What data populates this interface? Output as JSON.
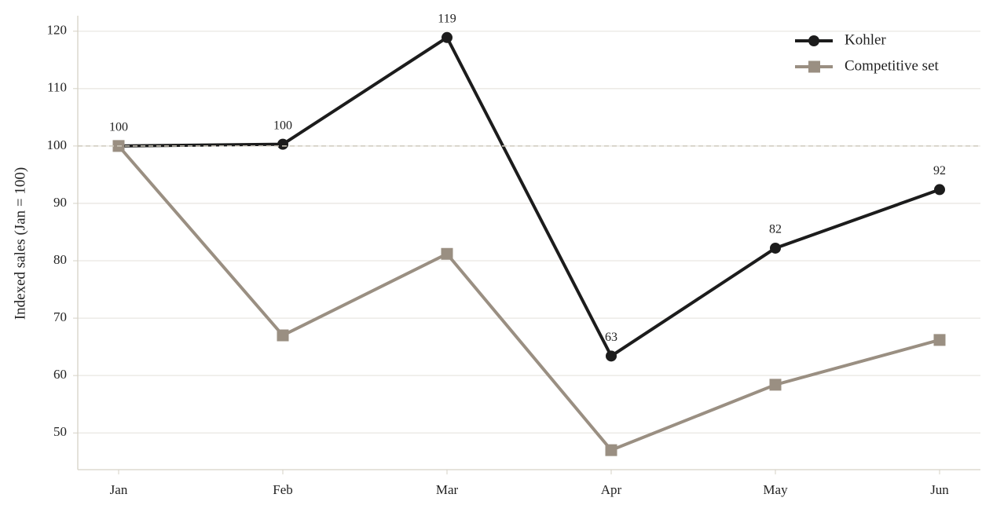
{
  "chart_data": {
    "type": "line",
    "y_label": "Indexed sales (Jan = 100)",
    "categories": [
      "Jan",
      "Feb",
      "Mar",
      "Apr",
      "May",
      "Jun"
    ],
    "series": [
      {
        "name": "Kohler",
        "color": "#1c1c1c",
        "marker": "circle",
        "values": [
          100,
          100.3,
          118.9,
          63.4,
          82.2,
          92.4
        ],
        "value_labels": [
          "100",
          "100",
          "119",
          "63",
          "82",
          "92"
        ]
      },
      {
        "name": "Competitive set",
        "color": "#9a8f82",
        "marker": "square",
        "values": [
          100,
          67,
          81.2,
          47,
          58.4,
          66.2
        ]
      }
    ],
    "reference_line": 100,
    "ylim": [
      43.6,
      122.7
    ],
    "yticks": [
      50,
      60,
      70,
      80,
      90,
      100,
      110,
      120
    ],
    "grid": true,
    "legend": "upper right"
  }
}
